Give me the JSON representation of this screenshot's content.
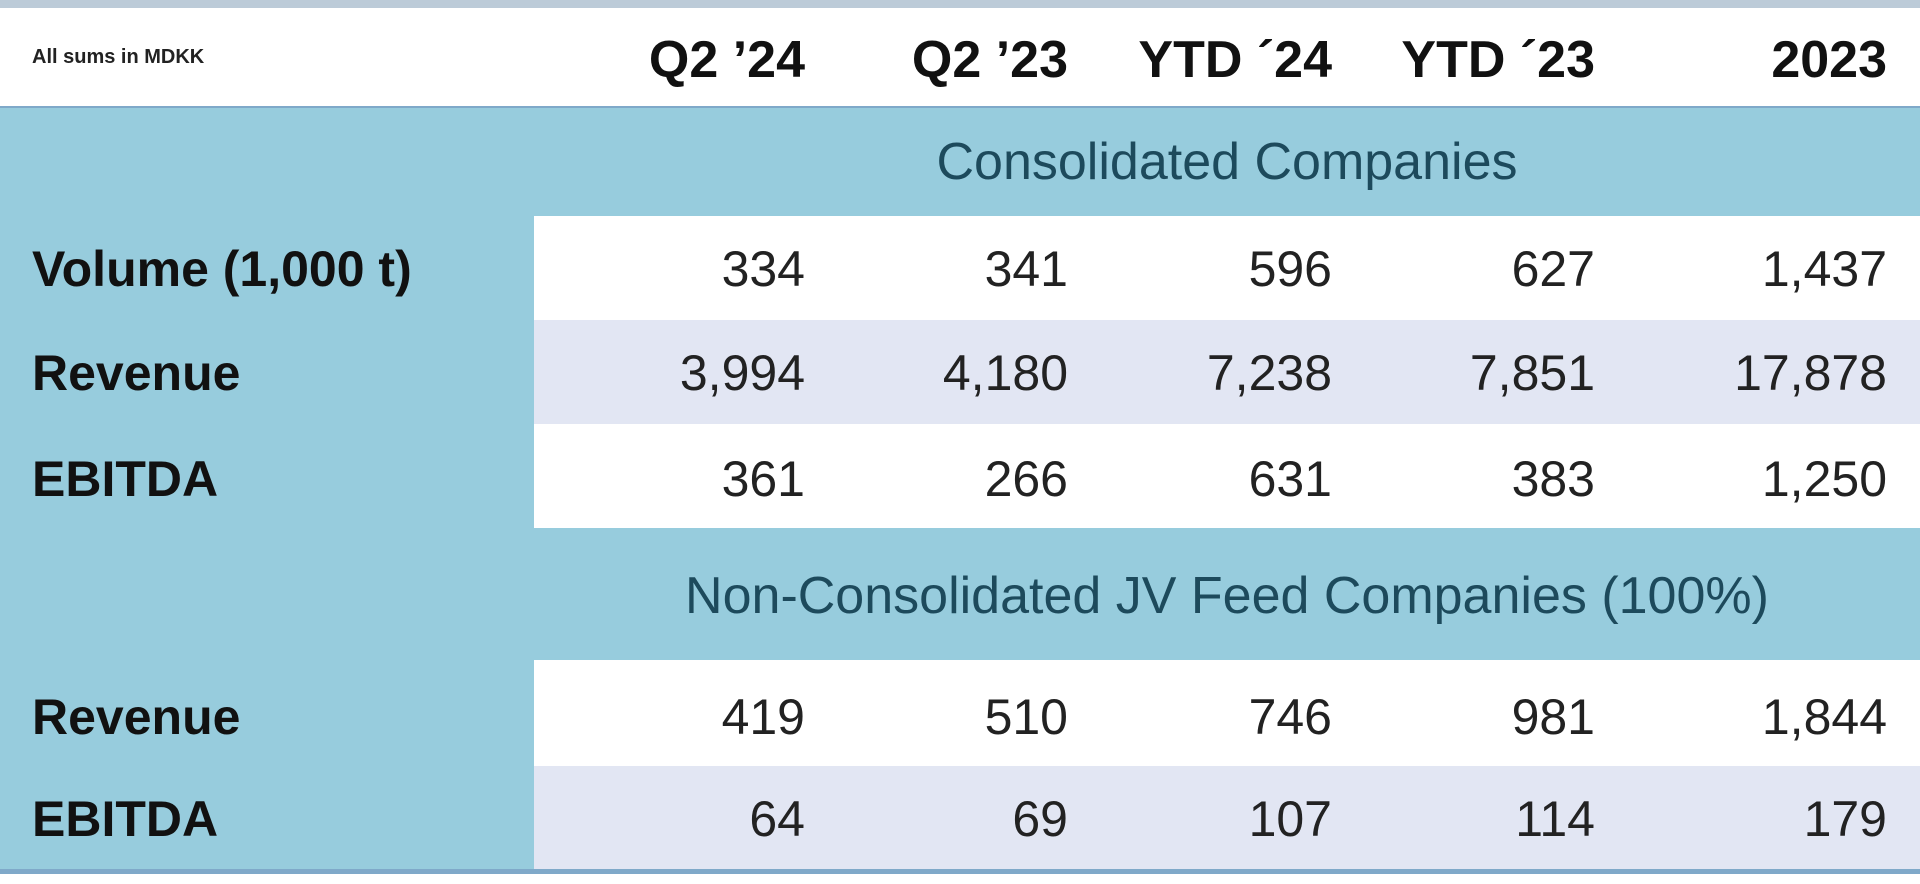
{
  "header": {
    "note": "All sums in MDKK",
    "columns": [
      "Q2 ’24",
      "Q2 ’23",
      "YTD ´24",
      "YTD ´23",
      "2023"
    ]
  },
  "sections": [
    {
      "title": "Consolidated Companies",
      "rows": [
        {
          "label": "Volume (1,000 t)",
          "values": [
            "334",
            "341",
            "596",
            "627",
            "1,437"
          ]
        },
        {
          "label": "Revenue",
          "values": [
            "3,994",
            "4,180",
            "7,238",
            "7,851",
            "17,878"
          ]
        },
        {
          "label": "EBITDA",
          "values": [
            "361",
            "266",
            "631",
            "383",
            "1,250"
          ]
        }
      ]
    },
    {
      "title": "Non-Consolidated JV Feed Companies (100%)",
      "rows": [
        {
          "label": "Revenue",
          "values": [
            "419",
            "510",
            "746",
            "981",
            "1,844"
          ]
        },
        {
          "label": "EBITDA",
          "values": [
            "64",
            "69",
            "107",
            "114",
            "179"
          ]
        }
      ]
    }
  ],
  "colors": {
    "band": "#97ccdd",
    "row_white": "#ffffff",
    "row_lavender": "#e2e6f3",
    "section_text": "#1d4a5c",
    "rule": "#7fa9c9"
  }
}
